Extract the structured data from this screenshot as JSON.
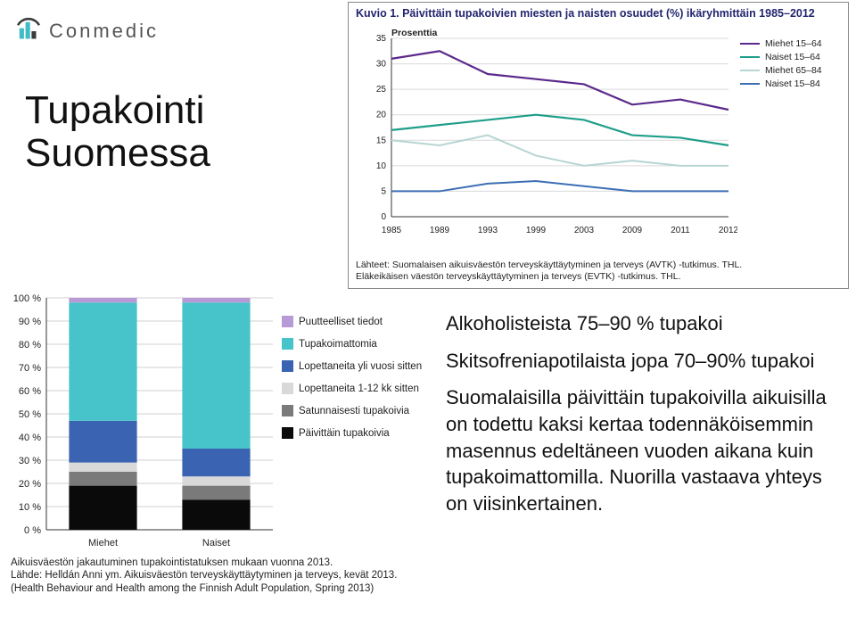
{
  "logo": {
    "text": "Conmedic",
    "mark_accent": "#3fbcc5",
    "mark_dark": "#3b3b3b"
  },
  "heading_line1": "Tupakointi",
  "heading_line2": "Suomessa",
  "line_chart": {
    "title": "Kuvio 1. Päivittäin tupakoivien miesten ja naisten osuudet (%) ikäryhmittäin 1985–2012",
    "ylabel": "Prosenttia",
    "ylim": [
      0,
      35
    ],
    "ytick_step": 5,
    "categories": [
      "1985",
      "1989",
      "1993",
      "1999",
      "2003",
      "2009",
      "2011",
      "2012"
    ],
    "series": [
      {
        "name": "Miehet 15–64",
        "color": "#5b2a8c",
        "width": 2.2,
        "values": [
          31,
          32.5,
          28,
          27,
          26,
          22,
          23,
          21
        ]
      },
      {
        "name": "Naiset 15–64",
        "color": "#1f9e8b",
        "width": 2.2,
        "values": [
          17,
          18,
          19,
          20,
          19,
          16,
          15.5,
          14
        ]
      },
      {
        "name": "Miehet 65–84",
        "color": "#b7d5d3",
        "width": 2.0,
        "values": [
          15,
          14,
          16,
          12,
          10,
          11,
          10,
          10
        ]
      },
      {
        "name": "Naiset 15–84",
        "color": "#3d6fb5",
        "width": 2.0,
        "values": [
          5,
          5,
          6.5,
          7,
          6,
          5,
          5,
          5
        ]
      }
    ],
    "background": "#ffffff",
    "grid_color": "#d9d9d9",
    "source_line1": "Lähteet: Suomalaisen aikuisväestön terveyskäyttäytyminen ja terveys (AVTK) -tutkimus. THL.",
    "source_line2": "Eläkeikäisen väestön terveyskäyttäytyminen ja terveys (EVTK) -tutkimus. THL."
  },
  "bar_chart": {
    "ylim": [
      0,
      100
    ],
    "ytick_step": 10,
    "categories": [
      "Miehet",
      "Naiset"
    ],
    "legend": [
      {
        "name": "Puutteelliset tiedot",
        "color": "#b79ad6"
      },
      {
        "name": "Tupakoimattomia",
        "color": "#46c4c9"
      },
      {
        "name": "Lopettaneita yli vuosi sitten",
        "color": "#3a63b1"
      },
      {
        "name": "Lopettaneita 1-12 kk sitten",
        "color": "#d9d9d9"
      },
      {
        "name": "Satunnaisesti tupakoivia",
        "color": "#7a7a7a"
      },
      {
        "name": "Päivittäin tupakoivia",
        "color": "#0a0a0a"
      }
    ],
    "stacks_miehet": [
      {
        "color": "#0a0a0a",
        "value": 19
      },
      {
        "color": "#7a7a7a",
        "value": 6
      },
      {
        "color": "#d9d9d9",
        "value": 4
      },
      {
        "color": "#3a63b1",
        "value": 18
      },
      {
        "color": "#46c4c9",
        "value": 51
      },
      {
        "color": "#b79ad6",
        "value": 2
      }
    ],
    "stacks_naiset": [
      {
        "color": "#0a0a0a",
        "value": 13
      },
      {
        "color": "#7a7a7a",
        "value": 6
      },
      {
        "color": "#d9d9d9",
        "value": 4
      },
      {
        "color": "#3a63b1",
        "value": 12
      },
      {
        "color": "#46c4c9",
        "value": 63
      },
      {
        "color": "#b79ad6",
        "value": 2
      }
    ],
    "bar_width": 0.6,
    "background": "#ffffff",
    "grid_color": "#d0d0d0",
    "source_line1": "Aikuisväestön jakautuminen tupakointistatuksen mukaan vuonna 2013.",
    "source_line2": "Lähde: Helldán Anni ym. Aikuisväestön terveyskäyttäytyminen ja terveys, kevät 2013.",
    "source_line3": "(Health Behaviour and Health among the Finnish Adult Population, Spring 2013)"
  },
  "textblock": {
    "line1": "Alkoholisteista 75–90 % tupakoi",
    "line2": "Skitsofreniapotilaista jopa 70–90% tupakoi",
    "line3": "Suomalaisilla päivittäin tupakoivilla aikuisilla on todettu kaksi kertaa todennäköisemmin masennus edeltäneen vuoden aikana kuin tupakoimattomilla. Nuorilla vastaava yhteys on viisinkertainen."
  }
}
